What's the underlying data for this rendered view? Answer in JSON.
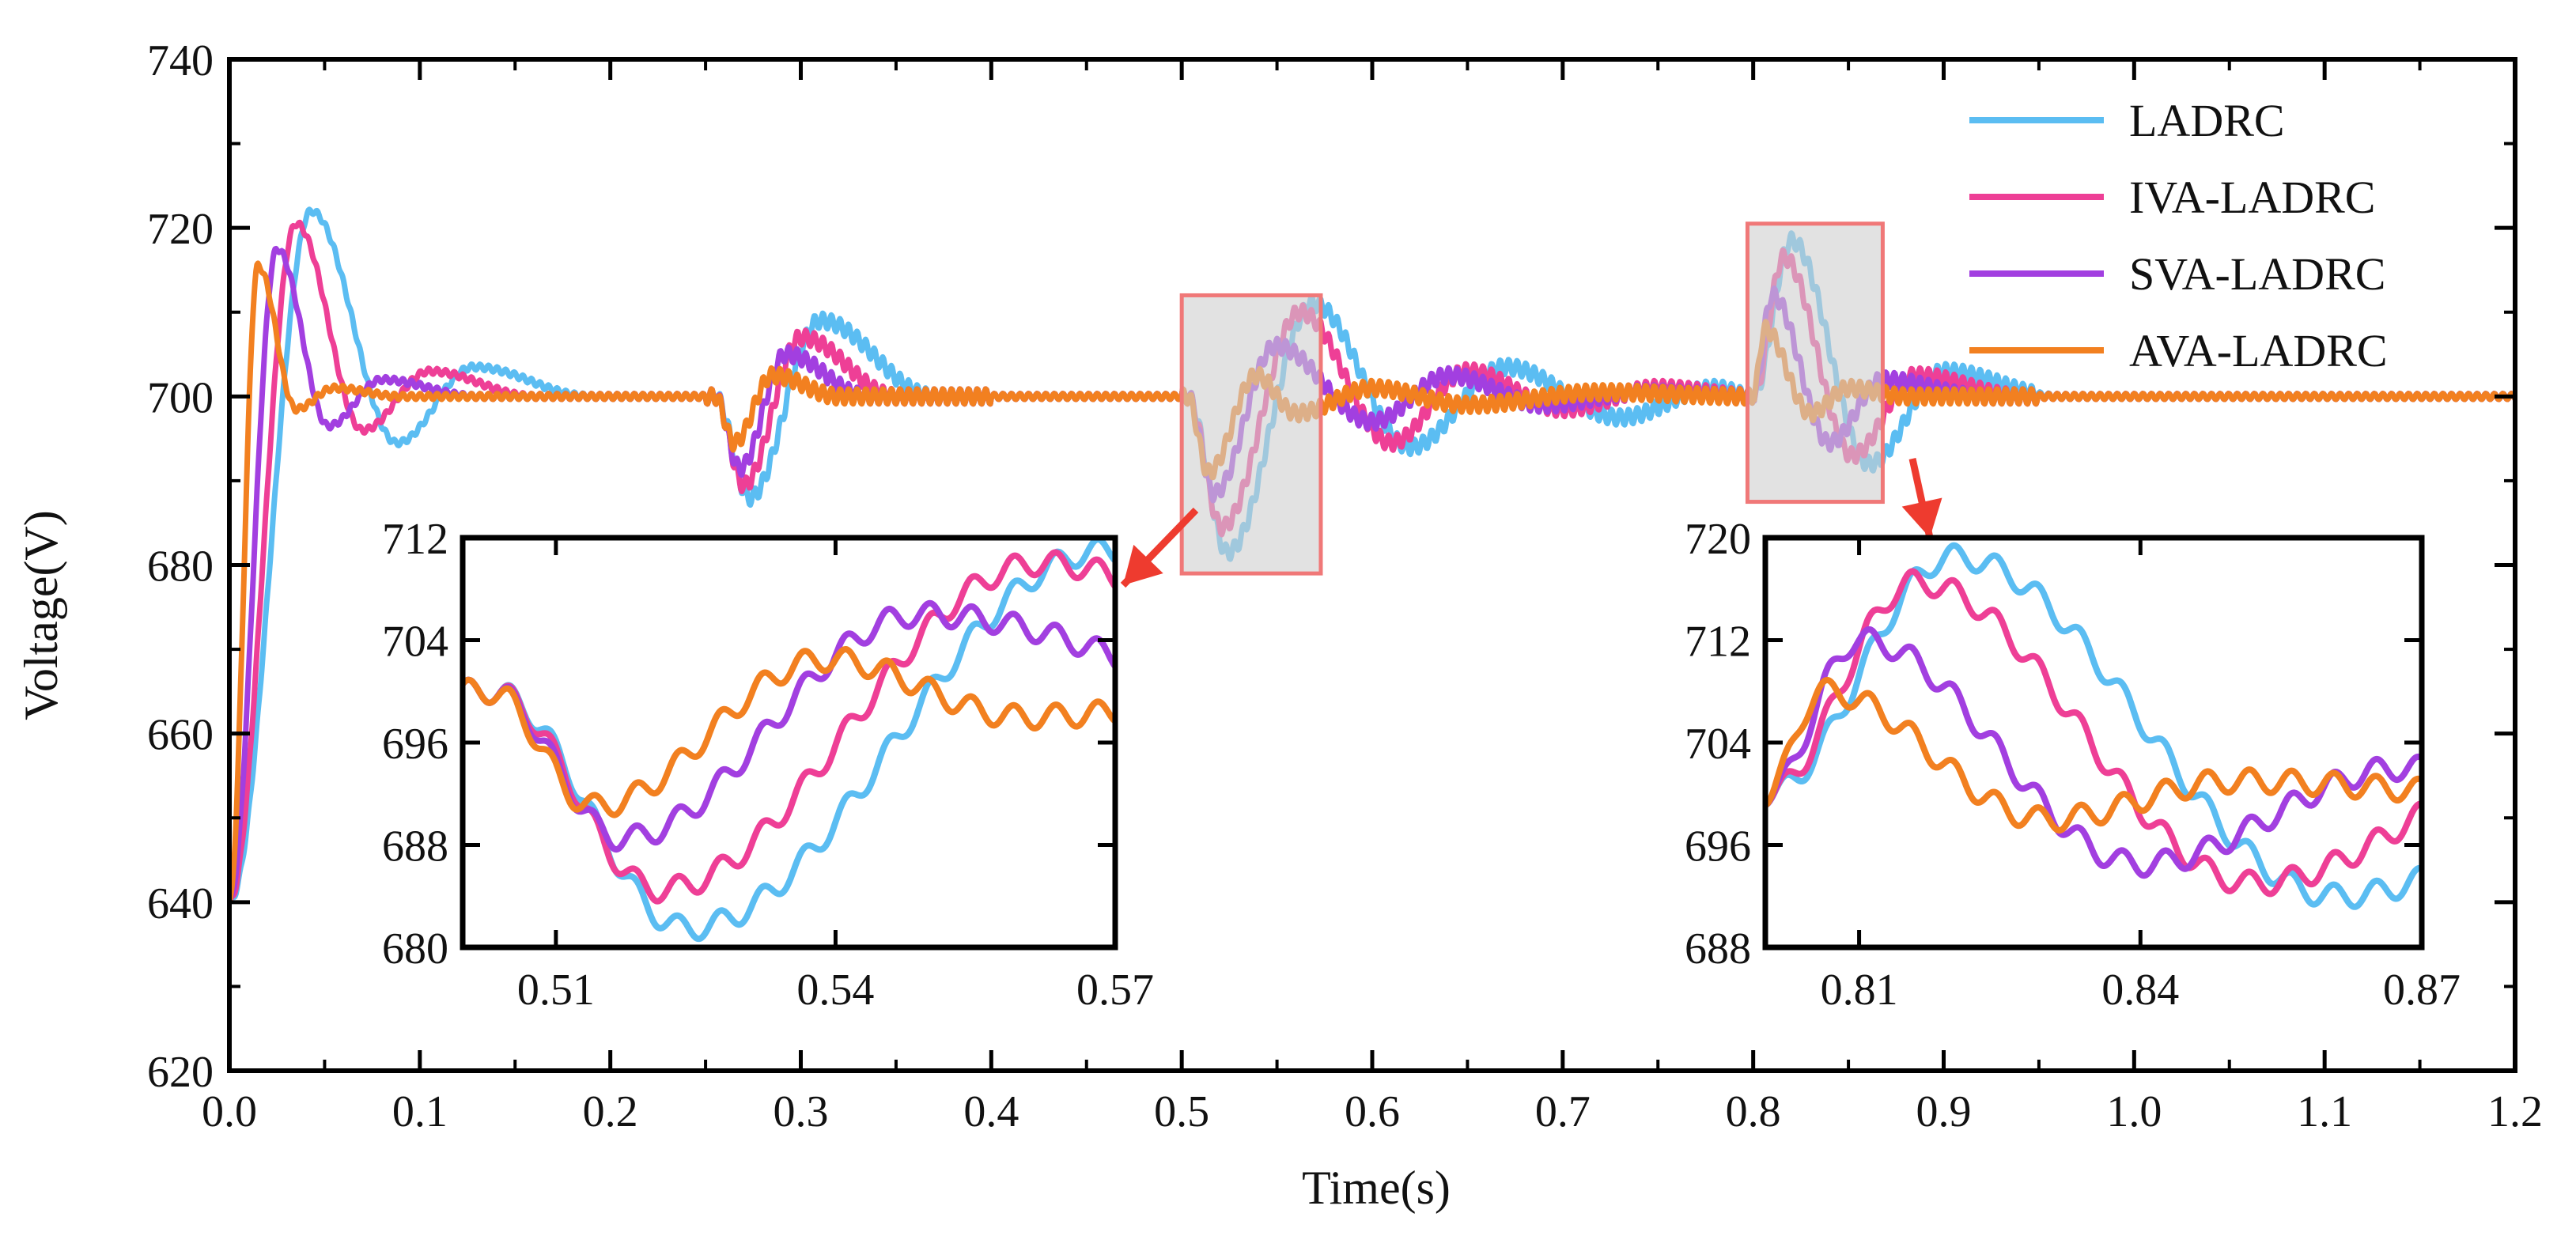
{
  "chart_data": {
    "type": "line",
    "xlabel": "Time(s)",
    "ylabel": "Voltage(V)",
    "xlim": [
      0.0,
      1.2
    ],
    "ylim": [
      620,
      740
    ],
    "xticks": [
      0.0,
      0.1,
      0.2,
      0.3,
      0.4,
      0.5,
      0.6,
      0.7,
      0.8,
      0.9,
      1.0,
      1.1,
      1.2
    ],
    "xtick_labels": [
      "0.0",
      "0.1",
      "0.2",
      "0.3",
      "0.4",
      "0.5",
      "0.6",
      "0.7",
      "0.8",
      "0.9",
      "1.0",
      "1.1",
      "1.2"
    ],
    "yticks": [
      620,
      640,
      660,
      680,
      700,
      720,
      740
    ],
    "ytick_labels": [
      "620",
      "640",
      "660",
      "680",
      "700",
      "720",
      "740"
    ],
    "legend_position": "top-right",
    "series": [
      {
        "name": "LADRC",
        "color": "#5bbdf2",
        "startup": {
          "start": 640,
          "peak_t": 0.043,
          "peak": 722,
          "trough_t": 0.088,
          "trough": 694.5,
          "p2_t": 0.128,
          "p2": 703.5,
          "settle": 0.19
        },
        "dip1": {
          "t0": 0.255,
          "min_t": 0.273,
          "min": 688,
          "over_t": 0.31,
          "over": 709,
          "settle": 0.37
        },
        "step2": {
          "t0": 0.503,
          "min_t": 0.524,
          "min": 681.5,
          "peak_t": 0.569,
          "peak": 711,
          "osc": [
            [
              0.62,
              694
            ],
            [
              0.67,
              703.5
            ],
            [
              0.73,
              697.5
            ],
            [
              0.78,
              701
            ]
          ]
        },
        "step3": {
          "t0": 0.8,
          "peak_t": 0.82,
          "peak": 718.5,
          "min_t": 0.861,
          "min": 692,
          "p2_t": 0.9,
          "p2": 703,
          "settle": 0.96
        }
      },
      {
        "name": "IVA-LADRC",
        "color": "#ee3f96",
        "startup": {
          "start": 640,
          "peak_t": 0.035,
          "peak": 720.5,
          "trough_t": 0.07,
          "trough": 696,
          "p2_t": 0.105,
          "p2": 703,
          "settle": 0.16
        },
        "dip1": {
          "t0": 0.255,
          "min_t": 0.27,
          "min": 689.5,
          "over_t": 0.3,
          "over": 707,
          "settle": 0.35
        },
        "step2": {
          "t0": 0.503,
          "min_t": 0.521,
          "min": 684.5,
          "peak_t": 0.562,
          "peak": 710,
          "osc": [
            [
              0.61,
              694.5
            ],
            [
              0.65,
              703
            ],
            [
              0.7,
              698.5
            ],
            [
              0.75,
              701
            ]
          ]
        },
        "step3": {
          "t0": 0.8,
          "peak_t": 0.816,
          "peak": 716.5,
          "min_t": 0.852,
          "min": 693,
          "p2_t": 0.885,
          "p2": 702.5,
          "settle": 0.94
        }
      },
      {
        "name": "SVA-LADRC",
        "color": "#a23fe0",
        "startup": {
          "start": 640,
          "peak_t": 0.025,
          "peak": 717.5,
          "trough_t": 0.052,
          "trough": 696.5,
          "p2_t": 0.08,
          "p2": 702,
          "settle": 0.13
        },
        "dip1": {
          "t0": 0.255,
          "min_t": 0.268,
          "min": 691.5,
          "over_t": 0.292,
          "over": 705,
          "settle": 0.335
        },
        "step2": {
          "t0": 0.503,
          "min_t": 0.517,
          "min": 688.5,
          "peak_t": 0.549,
          "peak": 706,
          "osc": [
            [
              0.6,
              697
            ],
            [
              0.64,
              702.5
            ],
            [
              0.69,
              699
            ],
            [
              0.74,
              700.5
            ]
          ]
        },
        "step3": {
          "t0": 0.8,
          "peak_t": 0.81,
          "peak": 712,
          "min_t": 0.84,
          "min": 694.5,
          "p2_t": 0.868,
          "p2": 702,
          "settle": 0.92
        }
      },
      {
        "name": "AVA-LADRC",
        "color": "#f28020",
        "startup": {
          "start": 640,
          "peak_t": 0.015,
          "peak": 715.5,
          "trough_t": 0.035,
          "trough": 698.5,
          "p2_t": 0.055,
          "p2": 701,
          "settle": 0.09
        },
        "dip1": {
          "t0": 0.255,
          "min_t": 0.265,
          "min": 694.5,
          "over_t": 0.285,
          "over": 702.5,
          "settle": 0.32
        },
        "step2": {
          "t0": 0.503,
          "min_t": 0.514,
          "min": 691,
          "peak_t": 0.539,
          "peak": 702.5,
          "osc": [
            [
              0.56,
              698
            ],
            [
              0.6,
              701
            ],
            [
              0.65,
              699
            ],
            [
              0.72,
              700.5
            ]
          ]
        },
        "step3": {
          "t0": 0.8,
          "peak_t": 0.806,
          "peak": 708,
          "min_t": 0.83,
          "min": 698,
          "p2_t": 0.85,
          "p2": 701,
          "settle": 0.88
        }
      }
    ],
    "insets": [
      {
        "name": "inset-left",
        "xlim": [
          0.5,
          0.57
        ],
        "ylim": [
          680,
          712
        ],
        "xticks": [
          0.51,
          0.54,
          0.57
        ],
        "xtick_labels": [
          "0.51",
          "0.54",
          "0.57"
        ],
        "yticks": [
          680,
          688,
          696,
          704,
          712
        ],
        "ytick_labels": [
          "680",
          "688",
          "696",
          "704",
          "712"
        ],
        "box_data": {
          "x": [
            0.5,
            0.573
          ],
          "y": [
            679,
            712
          ]
        }
      },
      {
        "name": "inset-right",
        "xlim": [
          0.8,
          0.87
        ],
        "ylim": [
          688,
          720
        ],
        "xticks": [
          0.81,
          0.84,
          0.87
        ],
        "xtick_labels": [
          "0.81",
          "0.84",
          "0.87"
        ],
        "yticks": [
          688,
          696,
          704,
          712,
          720
        ],
        "ytick_labels": [
          "688",
          "696",
          "704",
          "712",
          "720"
        ],
        "box_data": {
          "x": [
            0.797,
            0.868
          ],
          "y": [
            687.5,
            720.5
          ]
        }
      }
    ],
    "colors": {
      "frame": "#000000",
      "highlight_fill": "#cfcfcf",
      "highlight_stroke": "#f07878",
      "arrow": "#ee3b2f"
    }
  }
}
